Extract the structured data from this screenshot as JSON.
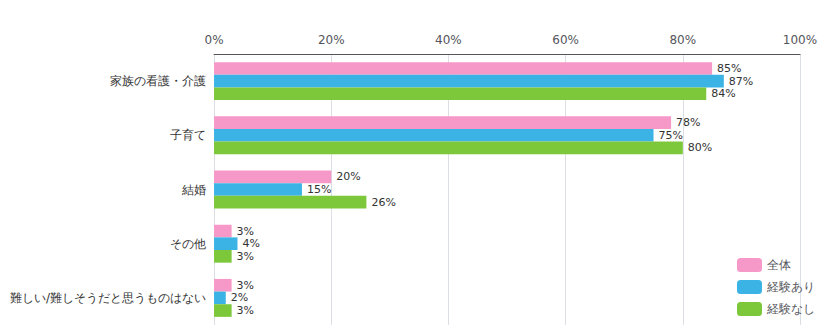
{
  "chart_data": {
    "type": "bar",
    "orientation": "horizontal",
    "categories": [
      "家族の看護・介護",
      "子育て",
      "結婚",
      "その他",
      "難しい/難しそうだと思うものはない"
    ],
    "series": [
      {
        "name": "全体",
        "color": "#F799C8",
        "values": [
          85,
          78,
          20,
          3,
          3
        ],
        "value_labels": [
          "85%",
          "78%",
          "20%",
          "3%",
          "3%"
        ]
      },
      {
        "name": "経験あり",
        "color": "#3BB4E5",
        "values": [
          87,
          75,
          15,
          4,
          2
        ],
        "value_labels": [
          "87%",
          "75%",
          "15%",
          "4%",
          "2%"
        ]
      },
      {
        "name": "経験なし",
        "color": "#7DC83A",
        "values": [
          84,
          80,
          26,
          3,
          3
        ],
        "value_labels": [
          "84%",
          "80%",
          "26%",
          "3%",
          "3%"
        ]
      }
    ],
    "xlim": [
      0,
      100
    ],
    "xticks": [
      {
        "value": 0,
        "label": "0%"
      },
      {
        "value": 20,
        "label": "20%"
      },
      {
        "value": 40,
        "label": "40%"
      },
      {
        "value": 60,
        "label": "60%"
      },
      {
        "value": 80,
        "label": "80%"
      },
      {
        "value": 100,
        "label": "100%"
      }
    ],
    "grid": true,
    "legend": "lower right",
    "data_labels": true
  }
}
